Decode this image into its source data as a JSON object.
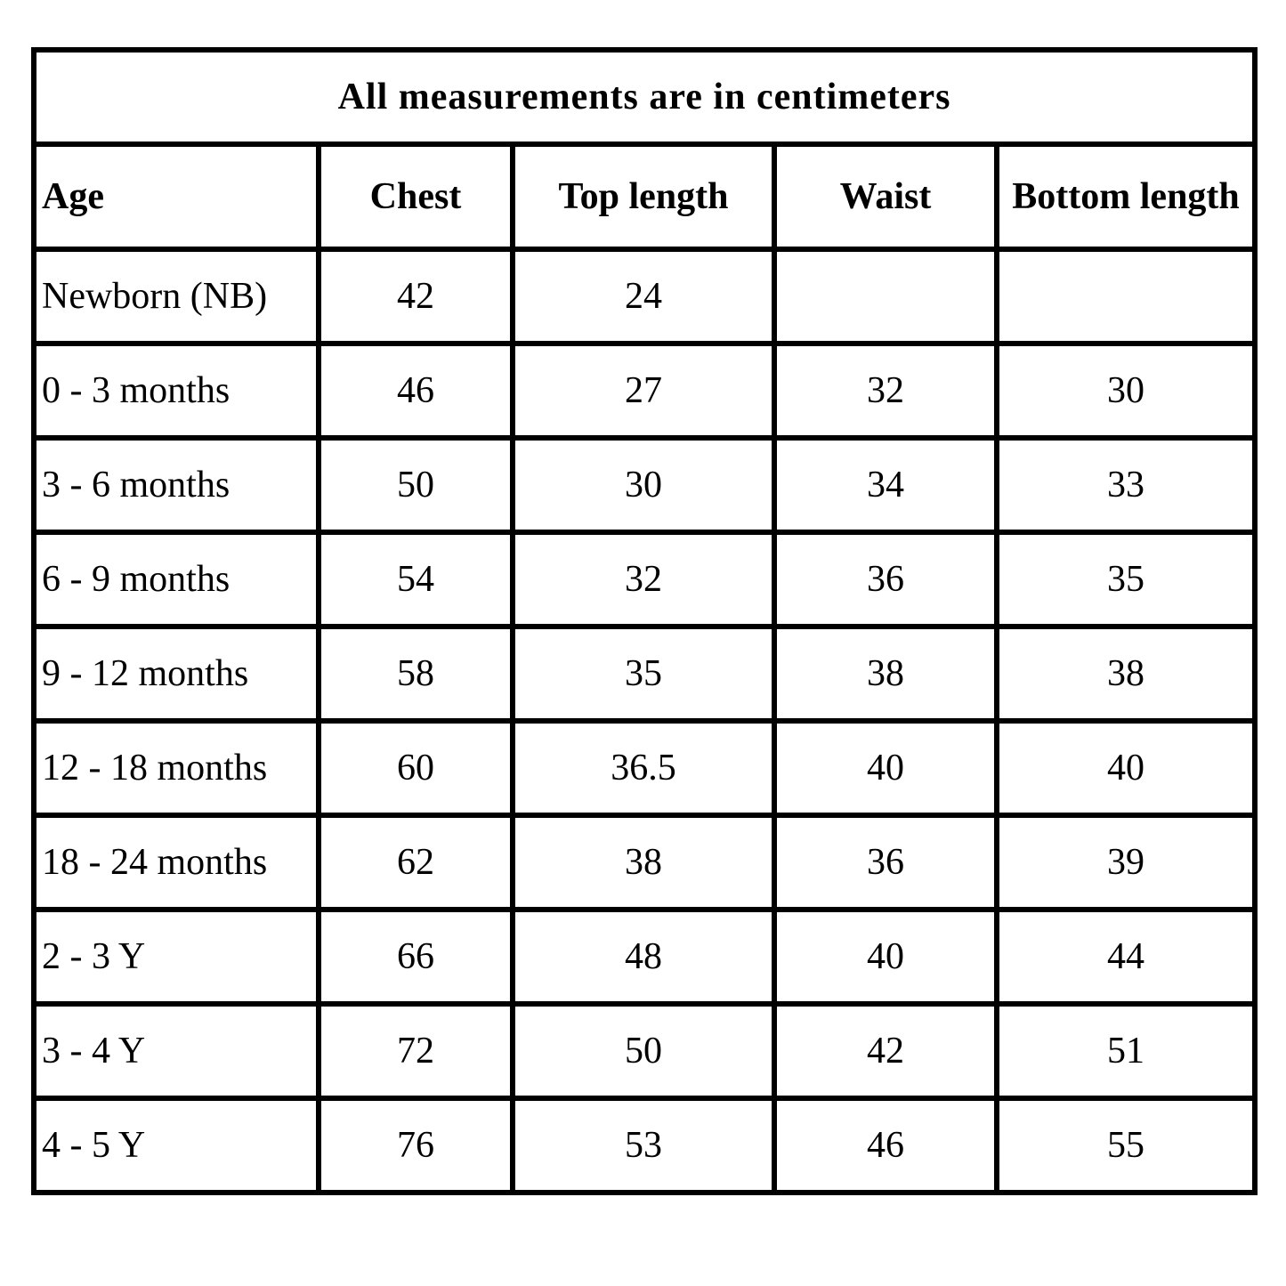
{
  "title": "All measurements are in centimeters",
  "columns": [
    "Age",
    "Chest",
    "Top length",
    "Waist",
    "Bottom length"
  ],
  "rows": [
    [
      "Newborn (NB)",
      "42",
      "24",
      "",
      ""
    ],
    [
      "0 - 3 months",
      "46",
      "27",
      "32",
      "30"
    ],
    [
      "3 - 6 months",
      "50",
      "30",
      "34",
      "33"
    ],
    [
      "6 - 9 months",
      "54",
      "32",
      "36",
      "35"
    ],
    [
      "9 - 12 months",
      "58",
      "35",
      "38",
      "38"
    ],
    [
      "12 - 18 months",
      "60",
      "36.5",
      "40",
      "40"
    ],
    [
      "18 - 24 months",
      "62",
      "38",
      "36",
      "39"
    ],
    [
      "2 - 3 Y",
      "66",
      "48",
      "40",
      "44"
    ],
    [
      "3 - 4 Y",
      "72",
      "50",
      "42",
      "51"
    ],
    [
      "4 - 5 Y",
      "76",
      "53",
      "46",
      "55"
    ]
  ]
}
